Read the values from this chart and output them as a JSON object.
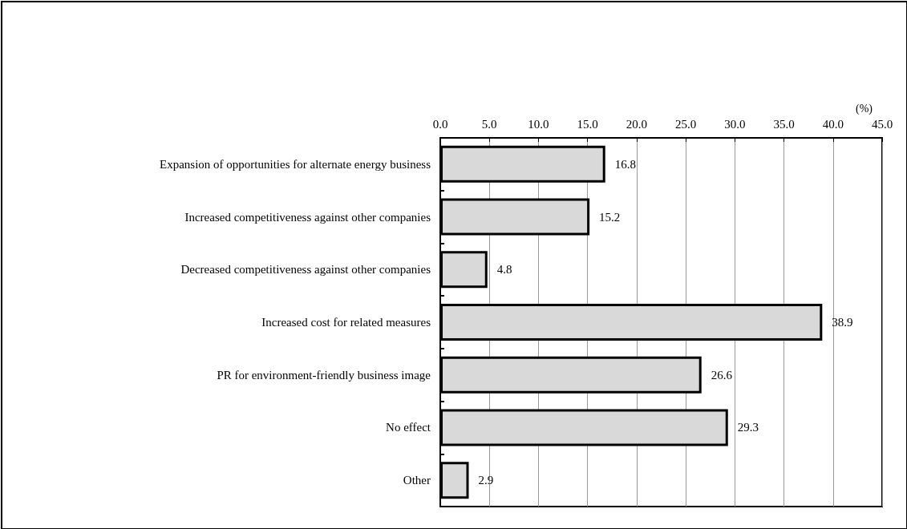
{
  "chart_data": {
    "type": "bar",
    "orientation": "horizontal",
    "xlabel": "(%)",
    "categories": [
      "Expansion of opportunities for alternate energy business",
      "Increased competitiveness against other companies",
      "Decreased competitiveness against other companies",
      "Increased cost for related measures",
      "PR for environment-friendly business image",
      "No effect",
      "Other"
    ],
    "values": [
      16.8,
      15.2,
      4.8,
      38.9,
      26.6,
      29.3,
      2.9
    ],
    "color": "#d9d9d9",
    "xlim": [
      0,
      45
    ],
    "xticks": [
      {
        "value": 0,
        "label": "0.0"
      },
      {
        "value": 5,
        "label": "5.0"
      },
      {
        "value": 10,
        "label": "10.0"
      },
      {
        "value": 15,
        "label": "15.0"
      },
      {
        "value": 20,
        "label": "20.0"
      },
      {
        "value": 25,
        "label": "25.0"
      },
      {
        "value": 30,
        "label": "30.0"
      },
      {
        "value": 35,
        "label": "35.0"
      },
      {
        "value": 40,
        "label": "40.0"
      },
      {
        "value": 45,
        "label": "45.0"
      }
    ],
    "grid": "x",
    "data_labels": true
  }
}
